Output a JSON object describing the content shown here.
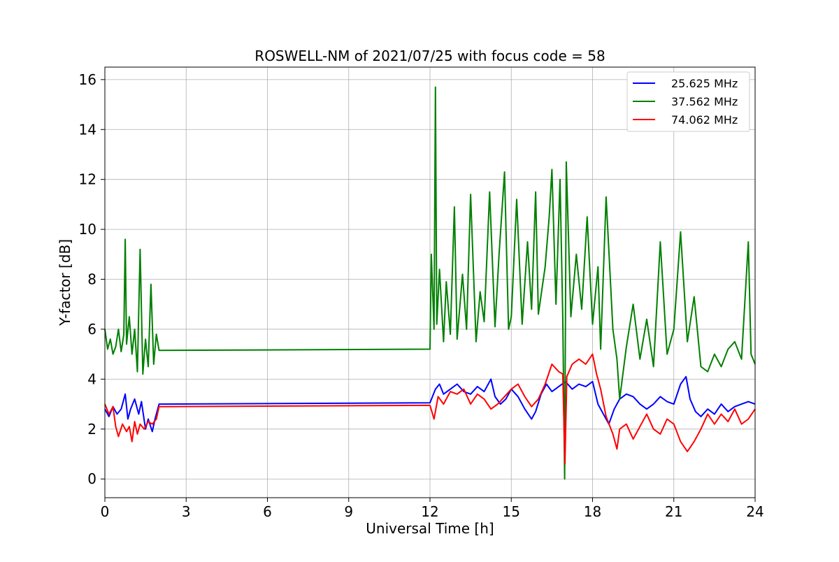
{
  "chart_data": {
    "type": "line",
    "title": "ROSWELL-NM of 2021/07/25 with focus code = 58",
    "xlabel": "Universal Time [h]",
    "ylabel": "Y-factor [dB]",
    "xlim": [
      0,
      24
    ],
    "ylim": [
      -0.75,
      16.5
    ],
    "xticks": [
      0,
      3,
      6,
      9,
      12,
      15,
      18,
      21,
      24
    ],
    "yticks": [
      0,
      2,
      4,
      6,
      8,
      10,
      12,
      14,
      16
    ],
    "grid": true,
    "legend_position": "top-right",
    "series": [
      {
        "name": "25.625 MHz",
        "color": "#0000ff",
        "x": [
          0.0,
          0.15,
          0.3,
          0.45,
          0.6,
          0.75,
          0.85,
          0.95,
          1.1,
          1.25,
          1.35,
          1.5,
          1.6,
          1.75,
          1.85,
          2.0,
          12.0,
          12.2,
          12.35,
          12.5,
          12.75,
          13.0,
          13.25,
          13.5,
          13.75,
          14.0,
          14.25,
          14.4,
          14.6,
          14.8,
          15.0,
          15.25,
          15.5,
          15.75,
          15.9,
          16.1,
          16.3,
          16.5,
          16.75,
          17.0,
          17.25,
          17.5,
          17.75,
          18.0,
          18.2,
          18.4,
          18.6,
          18.8,
          19.0,
          19.25,
          19.5,
          19.75,
          20.0,
          20.25,
          20.5,
          20.75,
          21.0,
          21.25,
          21.45,
          21.6,
          21.8,
          22.0,
          22.25,
          22.5,
          22.75,
          23.0,
          23.25,
          23.5,
          23.75,
          24.0
        ],
        "y": [
          2.8,
          2.5,
          2.9,
          2.6,
          2.8,
          3.4,
          2.4,
          2.8,
          3.2,
          2.6,
          3.1,
          2.0,
          2.4,
          1.9,
          2.4,
          3.0,
          3.05,
          3.6,
          3.8,
          3.4,
          3.6,
          3.8,
          3.5,
          3.4,
          3.7,
          3.5,
          4.0,
          3.3,
          3.0,
          3.2,
          3.6,
          3.3,
          2.8,
          2.4,
          2.7,
          3.4,
          3.8,
          3.5,
          3.7,
          3.9,
          3.6,
          3.8,
          3.7,
          3.9,
          3.0,
          2.6,
          2.2,
          2.8,
          3.2,
          3.4,
          3.3,
          3.0,
          2.8,
          3.0,
          3.3,
          3.1,
          3.0,
          3.8,
          4.1,
          3.2,
          2.7,
          2.5,
          2.8,
          2.6,
          3.0,
          2.7,
          2.9,
          3.0,
          3.1,
          3.0
        ]
      },
      {
        "name": "37.562 MHz",
        "color": "#008000",
        "x": [
          0.0,
          0.1,
          0.2,
          0.3,
          0.4,
          0.5,
          0.6,
          0.7,
          0.75,
          0.8,
          0.9,
          1.0,
          1.1,
          1.2,
          1.3,
          1.4,
          1.5,
          1.6,
          1.7,
          1.8,
          1.9,
          2.0,
          12.0,
          12.05,
          12.15,
          12.2,
          12.25,
          12.35,
          12.5,
          12.6,
          12.75,
          12.9,
          13.0,
          13.2,
          13.35,
          13.5,
          13.7,
          13.85,
          14.0,
          14.2,
          14.4,
          14.55,
          14.75,
          14.9,
          15.0,
          15.2,
          15.4,
          15.6,
          15.75,
          15.9,
          16.0,
          16.25,
          16.4,
          16.5,
          16.65,
          16.8,
          16.9,
          16.97,
          17.03,
          17.2,
          17.4,
          17.6,
          17.8,
          18.0,
          18.2,
          18.3,
          18.5,
          18.75,
          18.9,
          19.0,
          19.25,
          19.5,
          19.75,
          20.0,
          20.25,
          20.5,
          20.75,
          21.0,
          21.25,
          21.5,
          21.75,
          22.0,
          22.25,
          22.5,
          22.75,
          23.0,
          23.25,
          23.5,
          23.75,
          23.85,
          24.0
        ],
        "y": [
          6.0,
          5.2,
          5.6,
          5.0,
          5.3,
          6.0,
          5.1,
          5.8,
          9.6,
          5.4,
          6.5,
          5.0,
          6.0,
          4.3,
          9.2,
          4.2,
          5.6,
          4.5,
          7.8,
          4.6,
          5.8,
          5.15,
          5.2,
          9.0,
          6.0,
          15.7,
          6.2,
          8.4,
          5.5,
          7.9,
          5.8,
          10.9,
          5.6,
          8.2,
          6.0,
          11.4,
          5.5,
          7.5,
          6.3,
          11.5,
          6.1,
          9.0,
          12.3,
          6.0,
          6.5,
          11.2,
          6.2,
          9.5,
          6.8,
          11.5,
          6.6,
          8.5,
          10.5,
          12.4,
          7.0,
          12.0,
          6.5,
          0.0,
          12.7,
          6.5,
          9.0,
          6.8,
          10.5,
          6.2,
          8.5,
          5.2,
          11.3,
          6.0,
          4.8,
          3.2,
          5.3,
          7.0,
          4.8,
          6.4,
          4.5,
          9.5,
          5.0,
          6.0,
          9.9,
          5.5,
          7.3,
          4.5,
          4.3,
          5.0,
          4.5,
          5.2,
          5.5,
          4.8,
          9.5,
          5.0,
          4.6
        ]
      },
      {
        "name": "74.062 MHz",
        "color": "#ff0000",
        "x": [
          0.0,
          0.15,
          0.3,
          0.4,
          0.5,
          0.65,
          0.8,
          0.9,
          1.0,
          1.1,
          1.2,
          1.3,
          1.45,
          1.6,
          1.75,
          1.9,
          2.0,
          12.0,
          12.15,
          12.3,
          12.5,
          12.75,
          13.0,
          13.25,
          13.5,
          13.75,
          14.0,
          14.25,
          14.5,
          14.75,
          15.0,
          15.25,
          15.5,
          15.75,
          16.0,
          16.25,
          16.5,
          16.75,
          16.9,
          16.98,
          17.05,
          17.25,
          17.5,
          17.75,
          18.0,
          18.15,
          18.3,
          18.5,
          18.75,
          18.9,
          19.0,
          19.25,
          19.5,
          19.75,
          20.0,
          20.25,
          20.5,
          20.75,
          21.0,
          21.25,
          21.5,
          21.75,
          22.0,
          22.25,
          22.5,
          22.75,
          23.0,
          23.25,
          23.5,
          23.75,
          24.0
        ],
        "y": [
          3.0,
          2.6,
          2.9,
          2.1,
          1.7,
          2.2,
          1.9,
          2.1,
          1.5,
          2.3,
          1.8,
          2.2,
          2.0,
          2.3,
          2.2,
          2.4,
          2.9,
          2.95,
          2.4,
          3.3,
          3.0,
          3.5,
          3.4,
          3.6,
          3.0,
          3.4,
          3.2,
          2.8,
          3.0,
          3.3,
          3.6,
          3.8,
          3.3,
          2.9,
          3.2,
          3.8,
          4.6,
          4.3,
          4.2,
          0.6,
          4.1,
          4.6,
          4.8,
          4.6,
          5.0,
          4.2,
          3.6,
          2.5,
          1.8,
          1.2,
          2.0,
          2.2,
          1.6,
          2.1,
          2.6,
          2.0,
          1.8,
          2.4,
          2.2,
          1.5,
          1.1,
          1.5,
          2.0,
          2.6,
          2.2,
          2.6,
          2.3,
          2.8,
          2.2,
          2.4,
          2.8
        ]
      }
    ]
  }
}
